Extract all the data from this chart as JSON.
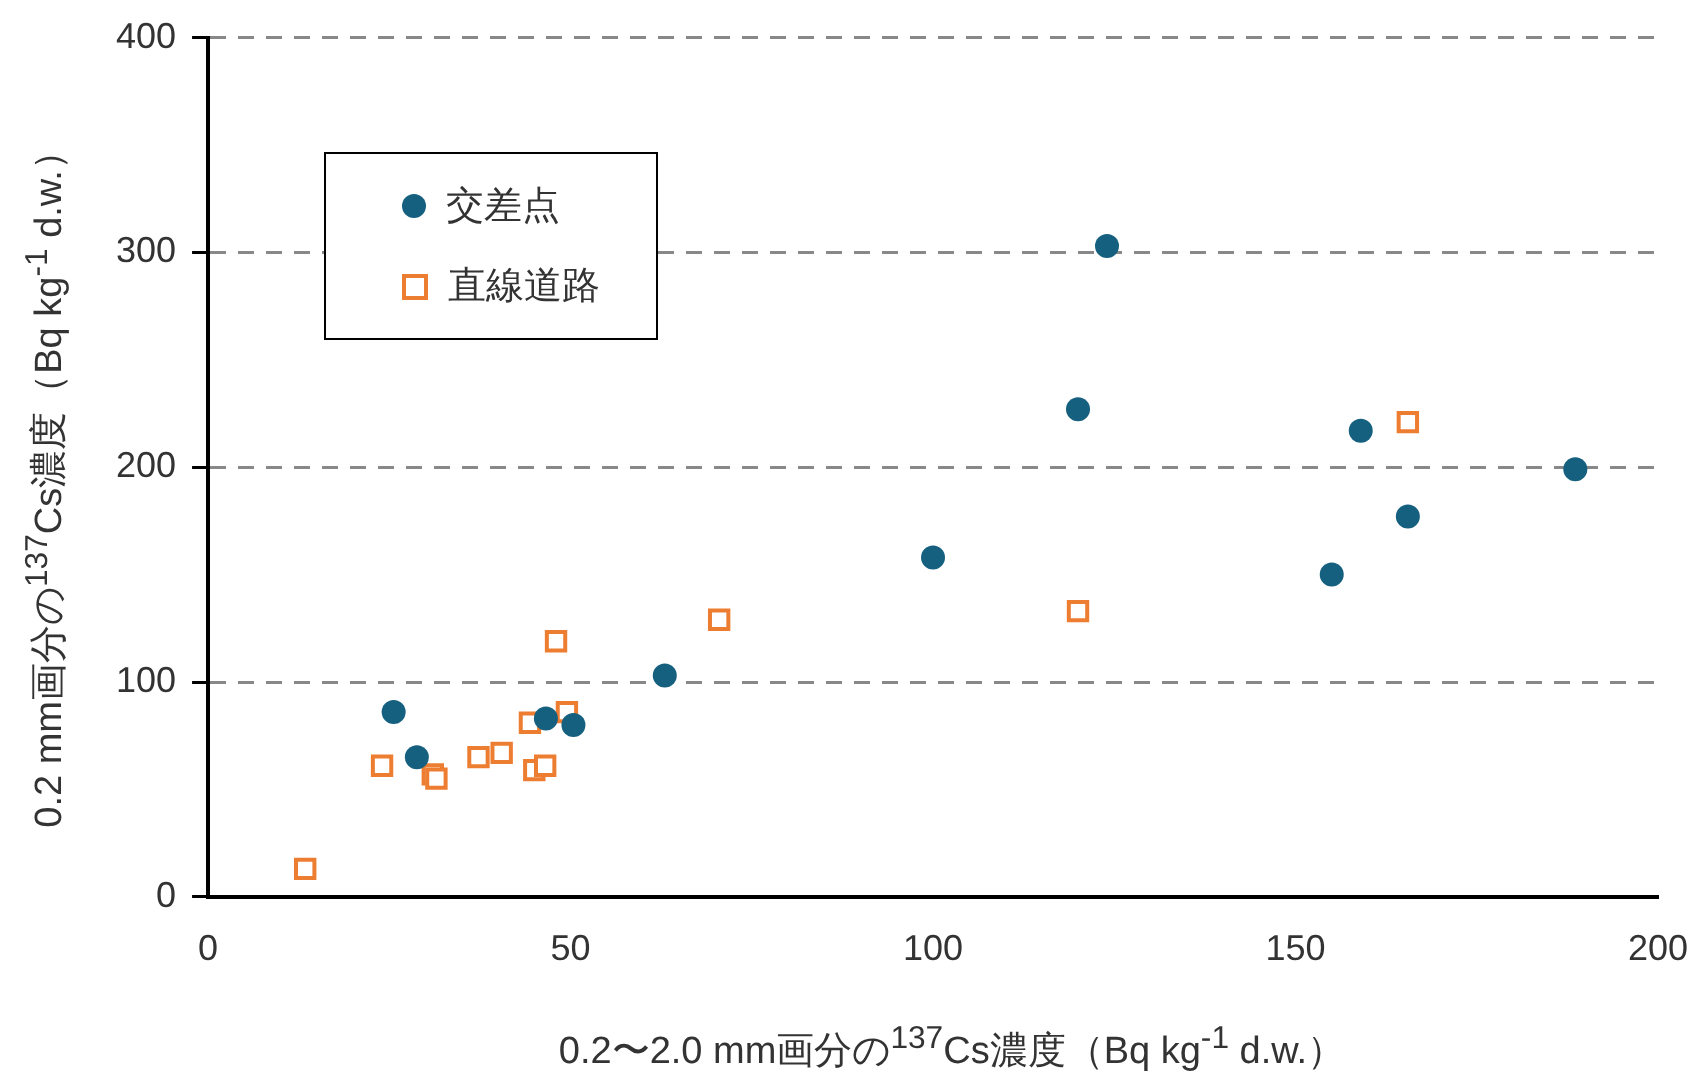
{
  "chart_data": {
    "type": "scatter",
    "xlabel": "0.2〜2.0 mm画分の$^{137}$Cs濃度（Bq kg$^{-1}$ d.w.）",
    "ylabel": "0.2 mm画分の$^{137}$Cs濃度（Bq kg$^{-1}$ d.w.）",
    "xlim": [
      0,
      200
    ],
    "xticks": [
      0,
      50,
      100,
      150,
      200
    ],
    "ylim": [
      0,
      400
    ],
    "yticks": [
      0,
      100,
      200,
      300,
      400
    ],
    "grid": "y",
    "legend": "top left",
    "series": [
      {
        "name": "交差点",
        "color": "#155f7f",
        "marker": "circle",
        "x": [
          25.6,
          28.8,
          46.6,
          50.4,
          63,
          100,
          120,
          124,
          155,
          159,
          165.5,
          188.6
        ],
        "values": [
          86,
          65,
          83,
          80,
          103,
          158,
          227,
          303,
          150,
          217,
          177,
          199
        ]
      },
      {
        "name": "直線道路",
        "color": "#ed7d31",
        "marker": "square",
        "x": [
          13.4,
          24,
          31,
          31.5,
          37.3,
          40.5,
          44.4,
          45,
          46.5,
          48,
          49.5,
          70.5,
          120,
          165.5
        ],
        "values": [
          13,
          61,
          57,
          55,
          65,
          67,
          81,
          59,
          61,
          119,
          86,
          129,
          133,
          221
        ]
      }
    ]
  }
}
